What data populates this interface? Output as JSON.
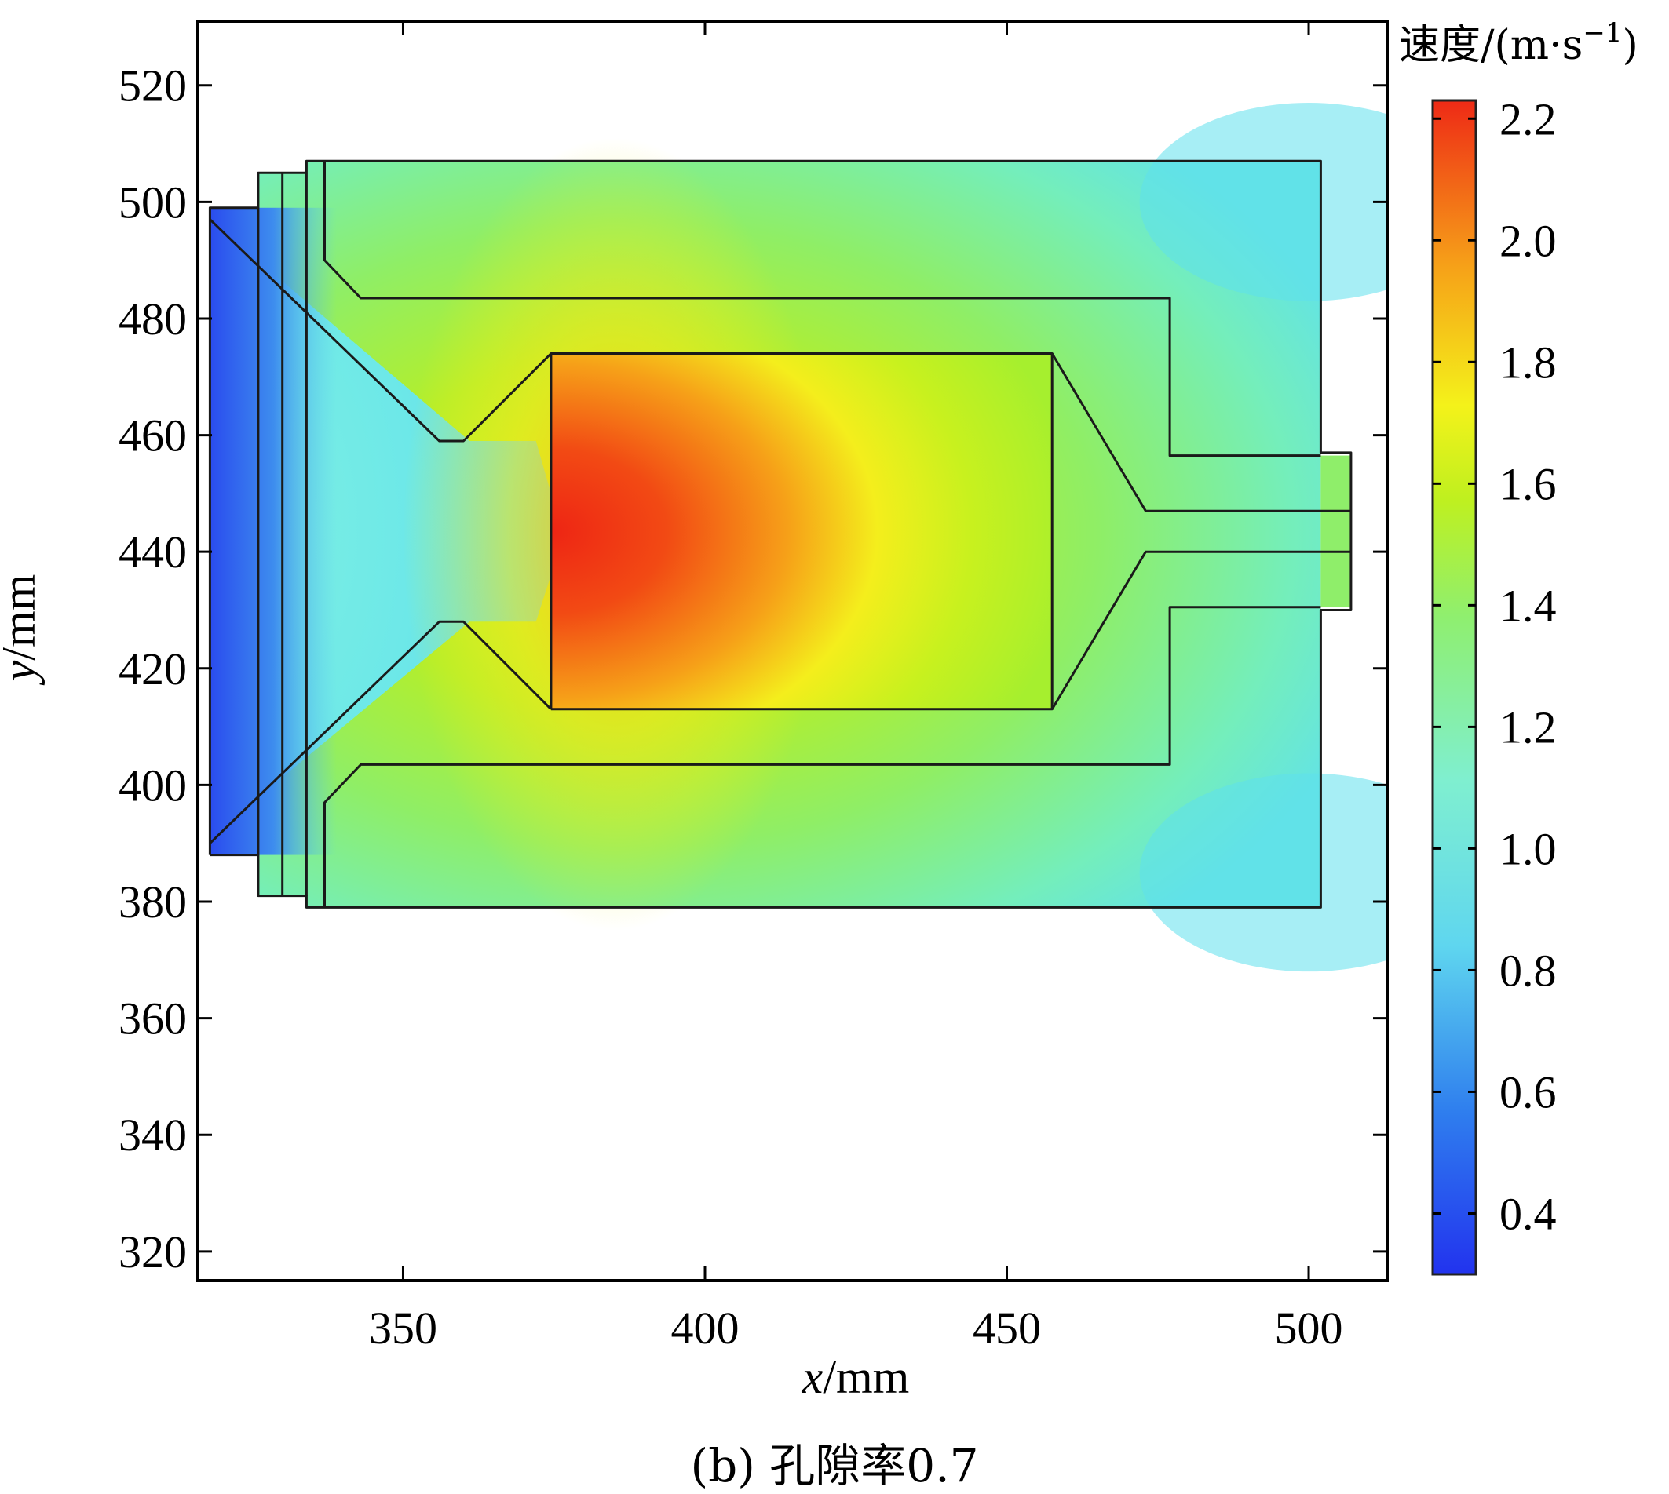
{
  "chart_data": {
    "type": "heatmap",
    "xlabel": {
      "var": "x",
      "unit": "/mm"
    },
    "ylabel": {
      "var": "y",
      "unit": "/mm"
    },
    "xlim": [
      316,
      513
    ],
    "ylim": [
      315,
      531
    ],
    "x_ticks": [
      350,
      400,
      450,
      500
    ],
    "y_ticks": [
      320,
      340,
      360,
      380,
      400,
      420,
      440,
      460,
      480,
      500,
      520
    ],
    "colorbar": {
      "title": "速度/(m·s",
      "title_sup": "−1",
      "title_end": ")",
      "range": [
        0.3,
        2.23
      ],
      "ticks": [
        0.4,
        0.6,
        0.8,
        1.0,
        1.2,
        1.4,
        1.6,
        1.8,
        2.0,
        2.2
      ],
      "tick_labels": [
        "0.4",
        "0.6",
        "0.8",
        "1.0",
        "1.2",
        "1.4",
        "1.6",
        "1.8",
        "2.0",
        "2.2"
      ],
      "colormap": [
        "#2233ee",
        "#2f7fee",
        "#5fd6ef",
        "#7fefd0",
        "#8fef6f",
        "#bff01f",
        "#f4f21a",
        "#f6a018",
        "#ee2a16"
      ]
    },
    "caption": "(b) 孔隙率0.7",
    "field": {
      "chamber_outline": [
        [
          334,
          507
        ],
        [
          502,
          507
        ],
        [
          502,
          379
        ],
        [
          334,
          379
        ]
      ],
      "outlet": {
        "x": [
          502,
          507
        ],
        "y": [
          430.5,
          456.5
        ]
      },
      "high_speed_core": {
        "x": [
          374.5,
          457.5
        ],
        "y": [
          413,
          474
        ],
        "max_speed": 2.2
      },
      "low_speed_inlet": {
        "x": [
          318,
          340
        ],
        "speed": 0.4
      }
    }
  }
}
